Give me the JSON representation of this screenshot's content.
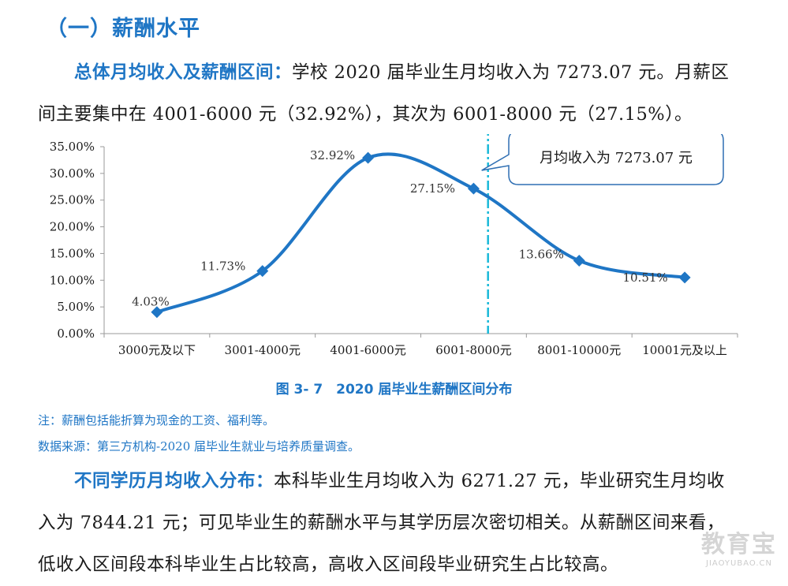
{
  "section_title": "（一）薪酬水平",
  "para1": {
    "lead": "总体月均收入及薪酬区间：",
    "body": "学校 2020 届毕业生月均收入为 7273.07 元。月薪区间主要集中在 4001-6000 元（32.92%），其次为 6001-8000 元（27.15%）。"
  },
  "chart_data": {
    "type": "line",
    "title": "",
    "categories": [
      "3000元及以下",
      "3001-4000元",
      "4001-6000元",
      "6001-8000元",
      "8001-10000元",
      "10001元及以上"
    ],
    "values": [
      4.03,
      11.73,
      32.92,
      27.15,
      13.66,
      10.51
    ],
    "value_labels": [
      "4.03%",
      "11.73%",
      "32.92%",
      "27.15%",
      "13.66%",
      "10.51%"
    ],
    "y_ticks": [
      "0.00%",
      "5.00%",
      "10.00%",
      "15.00%",
      "20.00%",
      "25.00%",
      "30.00%",
      "35.00%"
    ],
    "ylim": [
      0,
      35
    ],
    "xlabel": "",
    "ylabel": "",
    "smooth": true,
    "line_color": "#1f76c5",
    "reference_line_position": 7273.07,
    "callout": "月均收入为 7273.07 元"
  },
  "caption": "图 3- 7　2020 届毕业生薪酬区间分布",
  "notes": {
    "note1": "注：薪酬包括能折算为现金的工资、福利等。",
    "note2": "数据来源：第三方机构-2020 届毕业生就业与培养质量调查。"
  },
  "para2": {
    "lead": "不同学历月均收入分布：",
    "body": "本科毕业生月均收入为 6271.27 元，毕业研究生月均收入为 7844.21 元；可见毕业生的薪酬水平与其学历层次密切相关。从薪酬区间来看，低收入区间段本科毕业生占比较高，高收入区间段毕业研究生占比较高。"
  },
  "watermark": {
    "logo": "教育宝",
    "url": "JIAOYUBAO.CN"
  }
}
